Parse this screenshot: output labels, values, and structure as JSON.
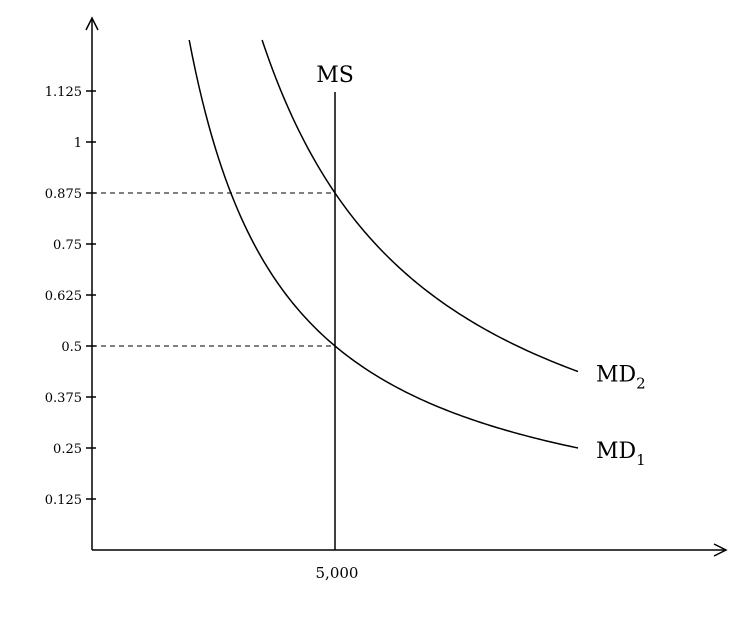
{
  "chart_data": {
    "type": "line",
    "title": "",
    "xlabel": "",
    "ylabel": "",
    "ylim": [
      0,
      1.25
    ],
    "grid": false,
    "y_ticks": [
      "0.125",
      "0.25",
      "0.375",
      "0.5",
      "0.625",
      "0.75",
      "0.875",
      "1",
      "1.125"
    ],
    "y_tick_values": [
      0.125,
      0.25,
      0.375,
      0.5,
      0.625,
      0.75,
      0.875,
      1,
      1.125
    ],
    "x_ticks": [
      "5,000"
    ],
    "x_tick_values": [
      5000
    ],
    "money_supply": {
      "name": "MS",
      "x": 5000
    },
    "series": [
      {
        "name": "MD",
        "subscript": "1",
        "k": 2500,
        "x_range": [
          2000,
          10000
        ]
      },
      {
        "name": "MD",
        "subscript": "2",
        "k": 4375,
        "x_range": [
          3500,
          10000
        ]
      }
    ],
    "equilibria": [
      {
        "x": 5000,
        "y": 0.5
      },
      {
        "x": 5000,
        "y": 0.875
      }
    ]
  }
}
